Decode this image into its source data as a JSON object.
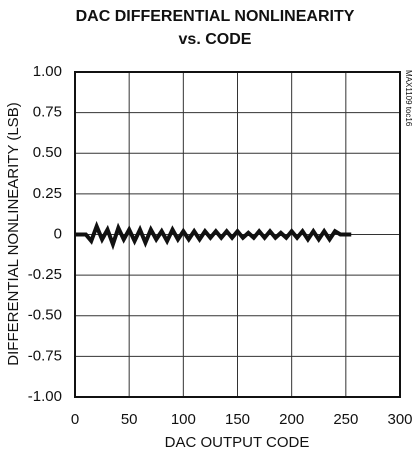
{
  "chart_data": {
    "type": "line",
    "title": "DAC DIFFERENTIAL NONLINEARITY",
    "subtitle": "vs. CODE",
    "annotation": "MAX1109 toc16",
    "x_label": "DAC OUTPUT CODE",
    "y_label": "DIFFERENTIAL NONLINEARITY (LSB)",
    "x": [
      0,
      5,
      10,
      15,
      20,
      25,
      30,
      35,
      40,
      45,
      50,
      55,
      60,
      65,
      70,
      75,
      80,
      85,
      90,
      95,
      100,
      105,
      110,
      115,
      120,
      125,
      130,
      135,
      140,
      145,
      150,
      155,
      160,
      165,
      170,
      175,
      180,
      185,
      190,
      195,
      200,
      205,
      210,
      215,
      220,
      225,
      230,
      235,
      240,
      245,
      250,
      255
    ],
    "series": [
      {
        "color": "#111111",
        "values": [
          0,
          0,
          0,
          -0.04,
          0.05,
          -0.03,
          0.03,
          -0.06,
          0.04,
          -0.03,
          0.03,
          -0.04,
          0.03,
          -0.05,
          0.03,
          -0.03,
          0.02,
          -0.04,
          0.03,
          -0.03,
          0.02,
          -0.03,
          0.02,
          -0.03,
          0.02,
          -0.02,
          0.02,
          -0.02,
          0.02,
          -0.02,
          0.02,
          -0.02,
          0.01,
          -0.02,
          0.02,
          -0.02,
          0.02,
          -0.02,
          0.01,
          -0.02,
          0.02,
          -0.02,
          0.02,
          -0.03,
          0.02,
          -0.03,
          0.02,
          -0.03,
          0.02,
          0,
          0,
          0
        ]
      }
    ],
    "xlim": [
      0,
      300
    ],
    "xticks": [
      0,
      50,
      100,
      150,
      200,
      250,
      300
    ],
    "ylim": [
      -1,
      1
    ],
    "yticks": [
      {
        "value": 1,
        "label": "1.00"
      },
      0.75,
      {
        "value": 0.5,
        "label": "0.50"
      },
      0.25,
      0,
      -0.25,
      {
        "value": -0.5,
        "label": "-0.50"
      },
      -0.75,
      {
        "value": -1,
        "label": "-1.00"
      }
    ],
    "grid": true
  }
}
